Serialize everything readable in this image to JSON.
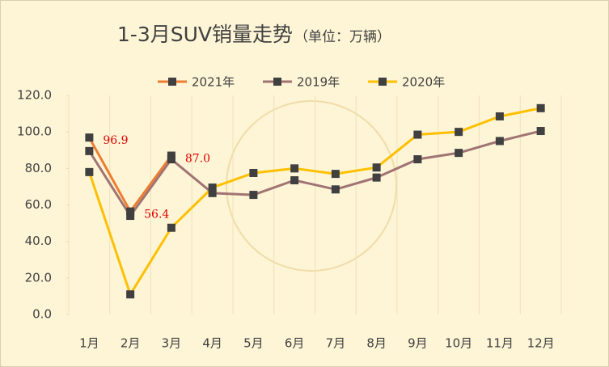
{
  "chart_data": {
    "type": "line",
    "title": "1-3月SUV销量走势",
    "subtitle": "（单位：万辆）",
    "categories": [
      "1月",
      "2月",
      "3月",
      "4月",
      "5月",
      "6月",
      "7月",
      "8月",
      "9月",
      "10月",
      "11月",
      "12月"
    ],
    "series": [
      {
        "name": "2021年",
        "color": "#ed7d31",
        "values": [
          96.9,
          56.4,
          87.0,
          null,
          null,
          null,
          null,
          null,
          null,
          null,
          null,
          null
        ],
        "value_labels": [
          "96.9",
          "56.4",
          "87.0",
          null,
          null,
          null,
          null,
          null,
          null,
          null,
          null,
          null
        ]
      },
      {
        "name": "2019年",
        "color": "#a07474",
        "values": [
          89.5,
          54,
          85,
          66.5,
          65.5,
          73.5,
          68.5,
          75,
          85,
          88.5,
          95,
          100.5
        ]
      },
      {
        "name": "2020年",
        "color": "#ffc000",
        "values": [
          78,
          11,
          47.5,
          69.5,
          77.5,
          80,
          77,
          80.5,
          98.5,
          100,
          108.5,
          113
        ]
      }
    ],
    "marker_color": "#404040",
    "ylim": [
      0,
      120
    ],
    "yticks": [
      {
        "value": 0,
        "label": "0.0"
      },
      {
        "value": 20,
        "label": "20.0"
      },
      {
        "value": 40,
        "label": "40.0"
      },
      {
        "value": 60,
        "label": "60.0"
      },
      {
        "value": 80,
        "label": "80.0"
      },
      {
        "value": 100,
        "label": "100.0"
      },
      {
        "value": 120,
        "label": "120.0"
      }
    ],
    "legend": "top"
  }
}
